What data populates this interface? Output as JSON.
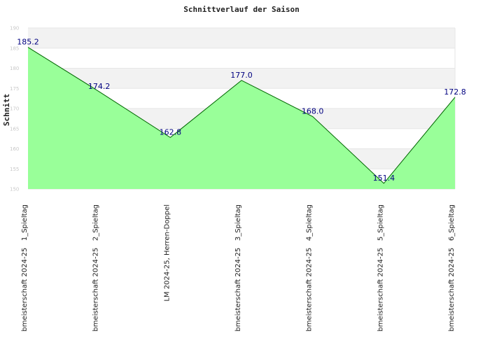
{
  "chart_data": {
    "type": "area",
    "title": "Schnittverlauf der Saison",
    "xlabel": "",
    "ylabel": "Schnitt",
    "ylim": [
      150,
      190
    ],
    "yticks": [
      150,
      155,
      160,
      165,
      170,
      175,
      180,
      185,
      190
    ],
    "grid": true,
    "categories": [
      "bmeisterschaft 2024-25   1_Spieltag",
      "bmeisterschaft 2024-25   2_Spieltag",
      "LM 2024-25, Herren-Doppel",
      "bmeisterschaft 2024-25   3_Spieltag",
      "bmeisterschaft 2024-25   4_Spieltag",
      "bmeisterschaft 2024-25   5_Spieltag",
      "bmeisterschaft 2024-25   6_Spieltag"
    ],
    "values": [
      185.2,
      174.2,
      162.8,
      177.0,
      168.0,
      151.4,
      172.8
    ],
    "labels": [
      "185.2",
      "174.2",
      "162.8",
      "177.0",
      "168.0",
      "151.4",
      "172.8"
    ],
    "colors": {
      "area_fill": "#99ff99",
      "line": "#006600",
      "data_label": "#000080",
      "band": "#f2f2f2",
      "grid": "#e6e6e6"
    }
  }
}
